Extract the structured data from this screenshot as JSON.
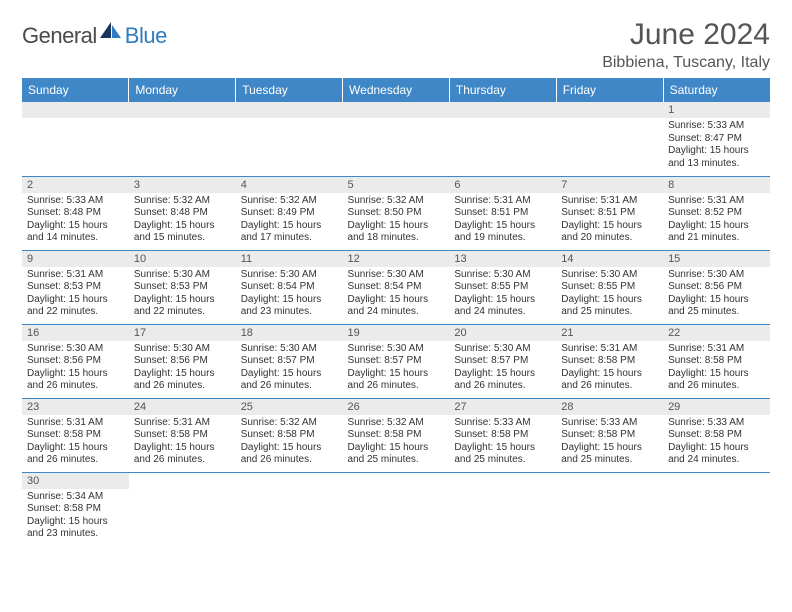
{
  "logo": {
    "text1": "General",
    "text2": "Blue"
  },
  "title": "June 2024",
  "location": "Bibbiena, Tuscany, Italy",
  "colors": {
    "header_bg": "#3f87c6",
    "header_fg": "#ffffff",
    "daynum_bg": "#ebebeb",
    "rule": "#3f87c6",
    "logo_accent": "#2f7bbf",
    "text": "#333333"
  },
  "typography": {
    "title_fontsize": 30,
    "location_fontsize": 16,
    "header_fontsize": 12,
    "daynum_fontsize": 11,
    "body_fontsize": 10
  },
  "columns": [
    "Sunday",
    "Monday",
    "Tuesday",
    "Wednesday",
    "Thursday",
    "Friday",
    "Saturday"
  ],
  "weeks": [
    [
      null,
      null,
      null,
      null,
      null,
      null,
      {
        "n": "1",
        "sunrise": "5:33 AM",
        "sunset": "8:47 PM",
        "daylight": "15 hours and 13 minutes."
      }
    ],
    [
      {
        "n": "2",
        "sunrise": "5:33 AM",
        "sunset": "8:48 PM",
        "daylight": "15 hours and 14 minutes."
      },
      {
        "n": "3",
        "sunrise": "5:32 AM",
        "sunset": "8:48 PM",
        "daylight": "15 hours and 15 minutes."
      },
      {
        "n": "4",
        "sunrise": "5:32 AM",
        "sunset": "8:49 PM",
        "daylight": "15 hours and 17 minutes."
      },
      {
        "n": "5",
        "sunrise": "5:32 AM",
        "sunset": "8:50 PM",
        "daylight": "15 hours and 18 minutes."
      },
      {
        "n": "6",
        "sunrise": "5:31 AM",
        "sunset": "8:51 PM",
        "daylight": "15 hours and 19 minutes."
      },
      {
        "n": "7",
        "sunrise": "5:31 AM",
        "sunset": "8:51 PM",
        "daylight": "15 hours and 20 minutes."
      },
      {
        "n": "8",
        "sunrise": "5:31 AM",
        "sunset": "8:52 PM",
        "daylight": "15 hours and 21 minutes."
      }
    ],
    [
      {
        "n": "9",
        "sunrise": "5:31 AM",
        "sunset": "8:53 PM",
        "daylight": "15 hours and 22 minutes."
      },
      {
        "n": "10",
        "sunrise": "5:30 AM",
        "sunset": "8:53 PM",
        "daylight": "15 hours and 22 minutes."
      },
      {
        "n": "11",
        "sunrise": "5:30 AM",
        "sunset": "8:54 PM",
        "daylight": "15 hours and 23 minutes."
      },
      {
        "n": "12",
        "sunrise": "5:30 AM",
        "sunset": "8:54 PM",
        "daylight": "15 hours and 24 minutes."
      },
      {
        "n": "13",
        "sunrise": "5:30 AM",
        "sunset": "8:55 PM",
        "daylight": "15 hours and 24 minutes."
      },
      {
        "n": "14",
        "sunrise": "5:30 AM",
        "sunset": "8:55 PM",
        "daylight": "15 hours and 25 minutes."
      },
      {
        "n": "15",
        "sunrise": "5:30 AM",
        "sunset": "8:56 PM",
        "daylight": "15 hours and 25 minutes."
      }
    ],
    [
      {
        "n": "16",
        "sunrise": "5:30 AM",
        "sunset": "8:56 PM",
        "daylight": "15 hours and 26 minutes."
      },
      {
        "n": "17",
        "sunrise": "5:30 AM",
        "sunset": "8:56 PM",
        "daylight": "15 hours and 26 minutes."
      },
      {
        "n": "18",
        "sunrise": "5:30 AM",
        "sunset": "8:57 PM",
        "daylight": "15 hours and 26 minutes."
      },
      {
        "n": "19",
        "sunrise": "5:30 AM",
        "sunset": "8:57 PM",
        "daylight": "15 hours and 26 minutes."
      },
      {
        "n": "20",
        "sunrise": "5:30 AM",
        "sunset": "8:57 PM",
        "daylight": "15 hours and 26 minutes."
      },
      {
        "n": "21",
        "sunrise": "5:31 AM",
        "sunset": "8:58 PM",
        "daylight": "15 hours and 26 minutes."
      },
      {
        "n": "22",
        "sunrise": "5:31 AM",
        "sunset": "8:58 PM",
        "daylight": "15 hours and 26 minutes."
      }
    ],
    [
      {
        "n": "23",
        "sunrise": "5:31 AM",
        "sunset": "8:58 PM",
        "daylight": "15 hours and 26 minutes."
      },
      {
        "n": "24",
        "sunrise": "5:31 AM",
        "sunset": "8:58 PM",
        "daylight": "15 hours and 26 minutes."
      },
      {
        "n": "25",
        "sunrise": "5:32 AM",
        "sunset": "8:58 PM",
        "daylight": "15 hours and 26 minutes."
      },
      {
        "n": "26",
        "sunrise": "5:32 AM",
        "sunset": "8:58 PM",
        "daylight": "15 hours and 25 minutes."
      },
      {
        "n": "27",
        "sunrise": "5:33 AM",
        "sunset": "8:58 PM",
        "daylight": "15 hours and 25 minutes."
      },
      {
        "n": "28",
        "sunrise": "5:33 AM",
        "sunset": "8:58 PM",
        "daylight": "15 hours and 25 minutes."
      },
      {
        "n": "29",
        "sunrise": "5:33 AM",
        "sunset": "8:58 PM",
        "daylight": "15 hours and 24 minutes."
      }
    ],
    [
      {
        "n": "30",
        "sunrise": "5:34 AM",
        "sunset": "8:58 PM",
        "daylight": "15 hours and 23 minutes."
      },
      null,
      null,
      null,
      null,
      null,
      null
    ]
  ],
  "labels": {
    "sunrise": "Sunrise:",
    "sunset": "Sunset:",
    "daylight": "Daylight:"
  }
}
